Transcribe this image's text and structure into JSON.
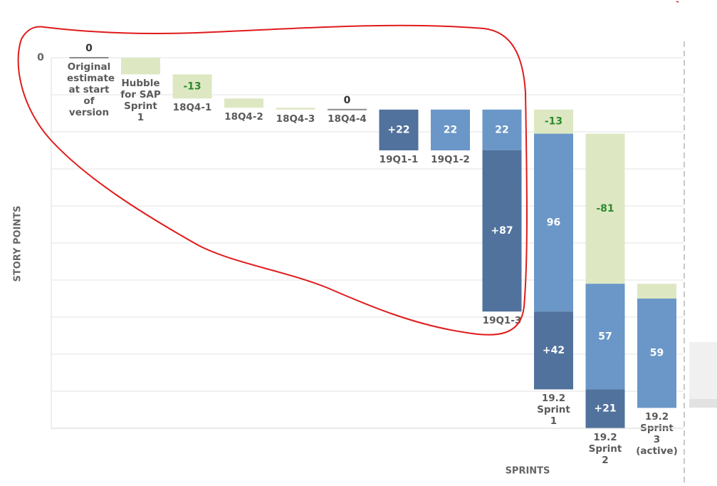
{
  "chart_data": {
    "type": "waterfall",
    "y_label": "STORY POINTS",
    "x_label": "SPRINTS",
    "categories": [
      "Original estimate at start of version",
      "Hubble for SAP Sprint 1",
      "18Q4-1",
      "18Q4-2",
      "18Q4-3",
      "18Q4-4",
      "19Q1-1",
      "19Q1-2",
      "19Q1-3",
      "19.2 Sprint 1",
      "19.2 Sprint 2",
      "19.2 Sprint 3 (active)"
    ],
    "series": [
      {
        "color": "#dde8c3",
        "label_color": "#2f8a2f",
        "zero_color": "#8a8a8a",
        "values": [
          0,
          9,
          13,
          5,
          1,
          0,
          null,
          null,
          null,
          13,
          81,
          8
        ],
        "value_labels": [
          "0",
          null,
          "-13",
          null,
          null,
          "0",
          null,
          null,
          null,
          "-13",
          "-81",
          null
        ]
      },
      {
        "color": "#6a97c7",
        "label_color": "#ffffff",
        "values": [
          null,
          null,
          null,
          null,
          null,
          null,
          null,
          22,
          22,
          96,
          57,
          59
        ],
        "value_labels": [
          null,
          null,
          null,
          null,
          null,
          null,
          null,
          "22",
          "22",
          "96",
          "57",
          "59"
        ]
      },
      {
        "color": "#51729c",
        "label_color": "#ffffff",
        "values": [
          null,
          null,
          null,
          null,
          null,
          null,
          22,
          null,
          87,
          42,
          21,
          null
        ],
        "value_labels": [
          null,
          null,
          null,
          null,
          null,
          null,
          "+22",
          null,
          "+87",
          "+42",
          "+21",
          null
        ]
      }
    ],
    "ylim": [
      0,
      200
    ],
    "y_inverted": true,
    "yticks": [
      0,
      {
        "value": 20,
        "label": null
      },
      {
        "value": 40,
        "label": null
      },
      {
        "value": 60,
        "label": null
      },
      {
        "value": 80,
        "label": null
      },
      {
        "value": 100,
        "label": null
      },
      {
        "value": 120,
        "label": null
      },
      {
        "value": 140,
        "label": null
      },
      {
        "value": 160,
        "label": null
      },
      {
        "value": 180,
        "label": null
      },
      {
        "value": 200,
        "label": null
      }
    ],
    "grid": true
  }
}
